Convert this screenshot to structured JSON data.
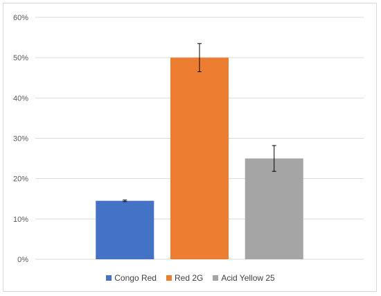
{
  "chart_data": {
    "type": "bar",
    "categories": [
      "Congo Red",
      "Red 2G",
      "Acid Yellow 25"
    ],
    "values": [
      14.5,
      50.0,
      25.0
    ],
    "errors": [
      0.2,
      3.5,
      3.2
    ],
    "colors": [
      "#4472c4",
      "#ed7d31",
      "#a5a5a5"
    ],
    "y_ticks": [
      "0%",
      "10%",
      "20%",
      "30%",
      "40%",
      "50%",
      "60%"
    ],
    "ylim": [
      0,
      60
    ],
    "grid": true,
    "legend_position": "bottom",
    "title": "",
    "xlabel": "",
    "ylabel": ""
  }
}
